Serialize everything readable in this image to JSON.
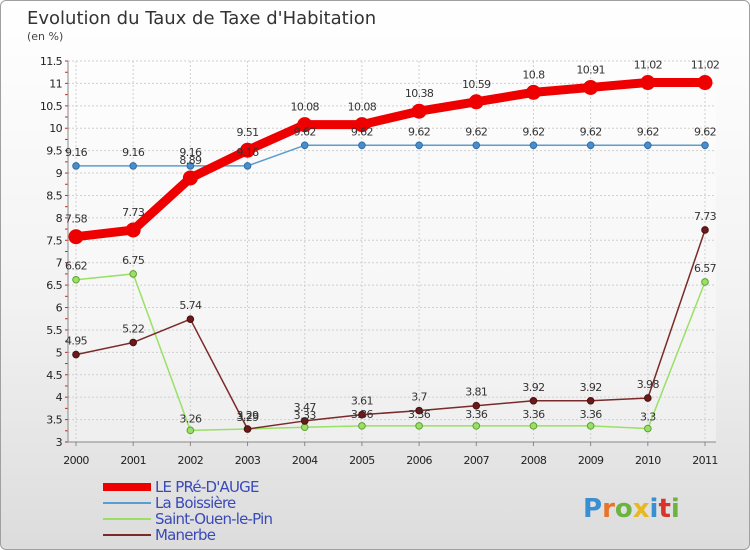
{
  "title": "Evolution du Taux de Taxe d'Habitation",
  "unit_label": "(en %)",
  "logo": {
    "letters": [
      "P",
      "r",
      "o",
      "x",
      "i",
      "t",
      "i"
    ],
    "colors": [
      "#3a8fd0",
      "#e8732a",
      "#6db33f",
      "#e8b820",
      "#3a8fd0",
      "#d8342c",
      "#6db33f"
    ]
  },
  "chart_data": {
    "type": "line",
    "x": [
      "2000",
      "2001",
      "2002",
      "2003",
      "2004",
      "2005",
      "2006",
      "2007",
      "2008",
      "2009",
      "2010",
      "2011"
    ],
    "ylim": [
      3,
      11.5
    ],
    "yticks": [
      "3",
      "3.5",
      "4",
      "4.5",
      "5",
      "5.5",
      "6",
      "6.5",
      "7",
      "7.5",
      "8",
      "8.5",
      "9",
      "9.5",
      "10",
      "10.5",
      "11",
      "11.5"
    ],
    "grid": true,
    "legend": "bottom-left",
    "series": [
      {
        "name": "LE PRé-D'AUGE",
        "color": "#ee0000",
        "values": [
          7.58,
          7.73,
          8.89,
          9.51,
          10.08,
          10.08,
          10.38,
          10.59,
          10.8,
          10.91,
          11.02,
          11.02
        ],
        "labels": [
          "7.58",
          "7.73",
          "8.89",
          "9.51",
          "10.08",
          "10.08",
          "10.38",
          "10.59",
          "10.8",
          "10.91",
          "11.02",
          "11.02"
        ]
      },
      {
        "name": "La Boissière",
        "color": "#5a9ed0",
        "values": [
          9.16,
          9.16,
          9.16,
          9.16,
          9.62,
          9.62,
          9.62,
          9.62,
          9.62,
          9.62,
          9.62,
          9.62
        ],
        "labels": [
          "9.16",
          "9.16",
          "9.16",
          "9.16",
          "9.62",
          "9.62",
          "9.62",
          "9.62",
          "9.62",
          "9.62",
          "9.62",
          "9.62"
        ]
      },
      {
        "name": "Saint-Ouen-le-Pin",
        "color": "#99e066",
        "values": [
          6.62,
          6.75,
          3.26,
          3.29,
          3.33,
          3.36,
          3.36,
          3.36,
          3.36,
          3.36,
          3.3,
          6.57
        ],
        "labels": [
          "6.62",
          "6.75",
          "3.26",
          "3.29",
          "3.33",
          "3.36",
          "3.36",
          "3.36",
          "3.36",
          "3.36",
          "3.3",
          "6.57"
        ]
      },
      {
        "name": "Manerbe",
        "color": "#7a2a2a",
        "values": [
          4.95,
          5.22,
          5.74,
          3.29,
          3.47,
          3.61,
          3.7,
          3.81,
          3.92,
          3.92,
          3.98,
          7.73
        ],
        "labels": [
          "4.95",
          "5.22",
          "5.74",
          "3.29",
          "3.47",
          "3.61",
          "3.7",
          "3.81",
          "3.92",
          "3.92",
          "3.98",
          "7.73"
        ]
      }
    ]
  }
}
